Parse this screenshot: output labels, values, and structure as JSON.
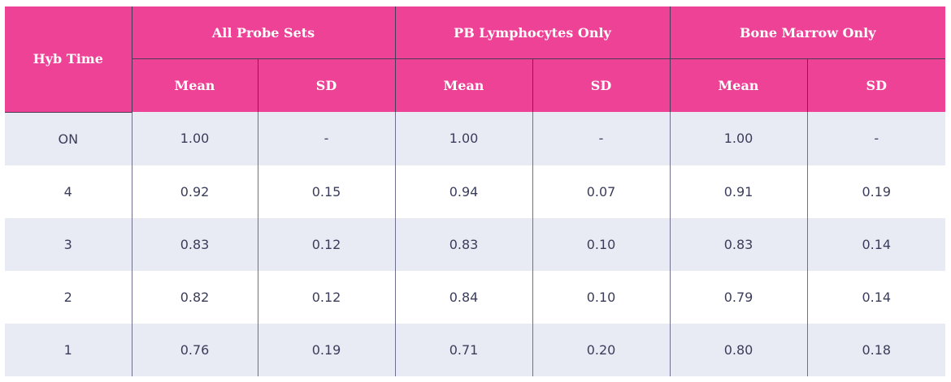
{
  "table": {
    "row_header_label": "Hyb Time",
    "groups": [
      {
        "label": "All Probe Sets",
        "mean_label": "Mean",
        "sd_label": "SD"
      },
      {
        "label": "PB Lymphocytes Only",
        "mean_label": "Mean",
        "sd_label": "SD"
      },
      {
        "label": "Bone Marrow Only",
        "mean_label": "Mean",
        "sd_label": "SD"
      }
    ],
    "rows": [
      {
        "hyb_time": "ON",
        "cells": [
          "1.00",
          "-",
          "1.00",
          "-",
          "1.00",
          "-"
        ]
      },
      {
        "hyb_time": "4",
        "cells": [
          "0.92",
          "0.15",
          "0.94",
          "0.07",
          "0.91",
          "0.19"
        ]
      },
      {
        "hyb_time": "3",
        "cells": [
          "0.83",
          "0.12",
          "0.83",
          "0.10",
          "0.83",
          "0.14"
        ]
      },
      {
        "hyb_time": "2",
        "cells": [
          "0.82",
          "0.12",
          "0.84",
          "0.10",
          "0.79",
          "0.14"
        ]
      },
      {
        "hyb_time": "1",
        "cells": [
          "0.76",
          "0.19",
          "0.71",
          "0.20",
          "0.80",
          "0.18"
        ]
      }
    ]
  },
  "colors": {
    "header_bg": "#ee4297",
    "header_text": "#ffffff",
    "stripe_bg": "#e9ebf4",
    "body_text": "#3a3d5a"
  }
}
